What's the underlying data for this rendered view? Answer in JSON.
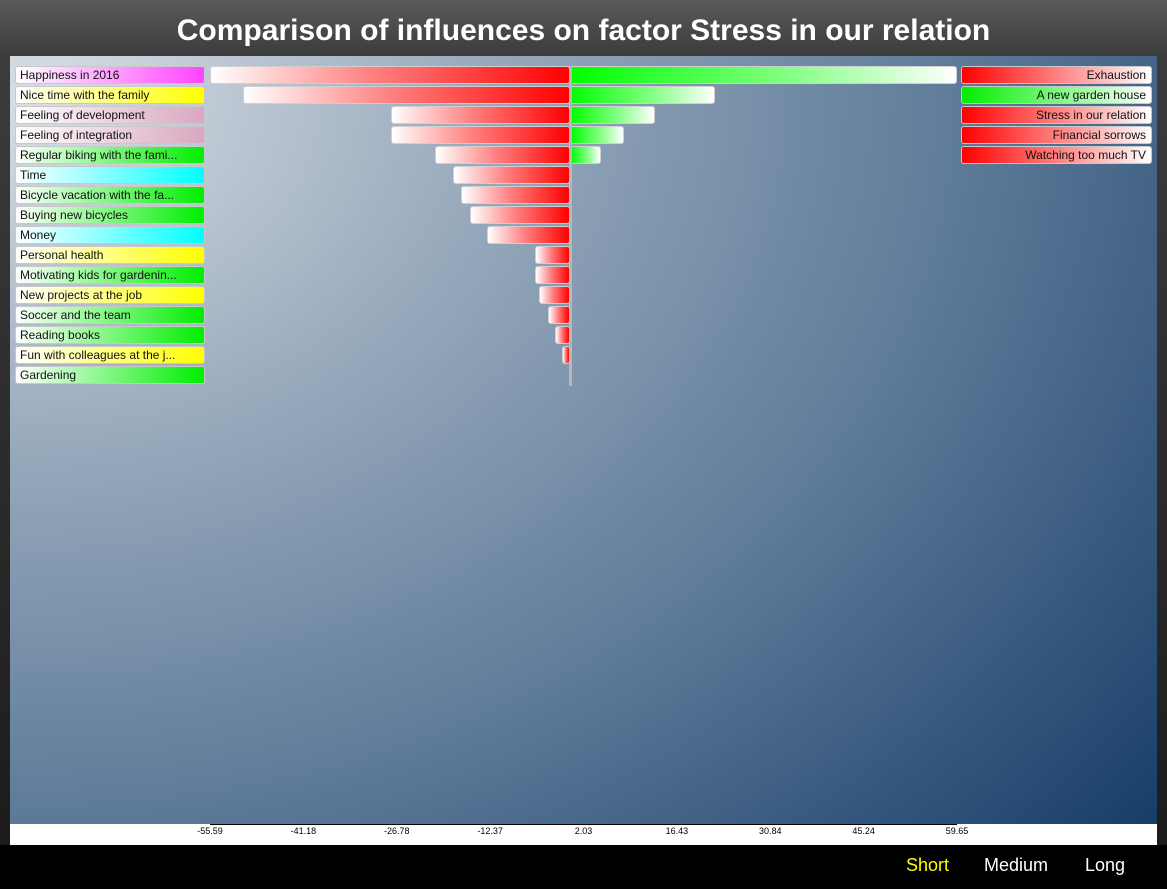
{
  "title": "Comparison of influences on factor Stress in our relation",
  "chart_data": {
    "type": "bar",
    "orientation": "horizontal-diverging",
    "title": "Comparison of influences on factor Stress in our relation",
    "xlim": [
      -55.59,
      59.65
    ],
    "x_ticks": [
      "-55.59",
      "-41.18",
      "-26.78",
      "-12.37",
      "2.03",
      "16.43",
      "30.84",
      "45.24",
      "59.65"
    ],
    "negative_influences": {
      "labels": [
        "Happiness in 2016",
        "Nice time with the family",
        "Feeling of development",
        "Feeling of integration",
        "Regular biking with the fami...",
        "Time",
        "Bicycle vacation with the fa...",
        "Buying new bicycles",
        "Money",
        "Personal health",
        "Motivating kids for gardenin...",
        "New projects at the job",
        "Soccer and the team",
        "Reading books",
        "Fun with colleagues at the j...",
        "Gardening"
      ],
      "label_colors": [
        "#ff44ff",
        "#ffff00",
        "#d8a8c0",
        "#d8a8c0",
        "#00ee00",
        "#00ffff",
        "#00ee00",
        "#00ee00",
        "#00ffff",
        "#ffff00",
        "#00ee00",
        "#ffff00",
        "#00ee00",
        "#00ee00",
        "#ffff00",
        "#00ee00"
      ],
      "values": [
        -55.6,
        -50.5,
        -27.6,
        -27.6,
        -20.9,
        -18.1,
        -16.9,
        -15.5,
        -12.8,
        -5.5,
        -5.5,
        -4.8,
        -3.4,
        -2.4,
        -1.3,
        0
      ]
    },
    "positive_influences": {
      "labels": [
        "Exhaustion",
        "A new garden house",
        "Stress in our relation",
        "Financial sorrows",
        "Watching too much TV"
      ],
      "label_colors": [
        "#ff0000",
        "#00ee00",
        "#ff0000",
        "#ff0000",
        "#ff0000"
      ],
      "values": [
        59.7,
        22.3,
        13.1,
        8.3,
        4.8
      ]
    },
    "colors": {
      "negative": "#ff0000",
      "positive": "#00ff00"
    }
  },
  "footer": {
    "buttons": [
      "Short",
      "Medium",
      "Long"
    ],
    "active": "Short",
    "active_color": "#ffff00"
  }
}
